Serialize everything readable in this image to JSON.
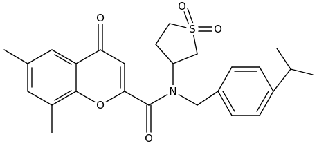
{
  "atoms": [
    {
      "label": "O"
    },
    {
      "label": "O"
    },
    {
      "label": "N"
    },
    {
      "label": "O"
    },
    {
      "label": "S"
    },
    {
      "label": "O"
    },
    {
      "label": "O"
    }
  ]
}
